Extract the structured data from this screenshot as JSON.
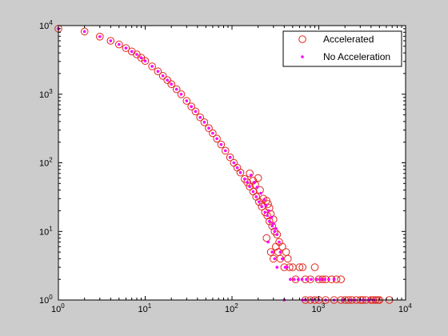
{
  "chart_data": {
    "type": "scatter",
    "x_scale": "log",
    "y_scale": "log",
    "xlim": [
      1,
      10000
    ],
    "ylim": [
      1,
      10000
    ],
    "grid": false,
    "legend_position": "top-right",
    "x_ticks": [
      {
        "base": "10",
        "exp": "0"
      },
      {
        "base": "10",
        "exp": "1"
      },
      {
        "base": "10",
        "exp": "2"
      },
      {
        "base": "10",
        "exp": "3"
      },
      {
        "base": "10",
        "exp": "4"
      }
    ],
    "y_ticks": [
      {
        "base": "10",
        "exp": "0"
      },
      {
        "base": "10",
        "exp": "1"
      },
      {
        "base": "10",
        "exp": "2"
      },
      {
        "base": "10",
        "exp": "3"
      },
      {
        "base": "10",
        "exp": "4"
      }
    ],
    "series": [
      {
        "name": "Accelerated",
        "marker": "circle-open",
        "color": "#e0281e",
        "points": [
          [
            1,
            9000
          ],
          [
            2,
            8200
          ],
          [
            3,
            6900
          ],
          [
            4,
            6000
          ],
          [
            5,
            5300
          ],
          [
            6,
            4700
          ],
          [
            7,
            4200
          ],
          [
            8,
            3800
          ],
          [
            9,
            3400
          ],
          [
            10,
            3050
          ],
          [
            12,
            2550
          ],
          [
            14,
            2150
          ],
          [
            16,
            1850
          ],
          [
            18,
            1600
          ],
          [
            20,
            1400
          ],
          [
            23,
            1180
          ],
          [
            26,
            1000
          ],
          [
            30,
            800
          ],
          [
            34,
            660
          ],
          [
            38,
            560
          ],
          [
            43,
            460
          ],
          [
            48,
            390
          ],
          [
            54,
            320
          ],
          [
            60,
            270
          ],
          [
            67,
            225
          ],
          [
            75,
            185
          ],
          [
            84,
            150
          ],
          [
            95,
            120
          ],
          [
            105,
            100
          ],
          [
            115,
            85
          ],
          [
            125,
            72
          ],
          [
            140,
            58
          ],
          [
            150,
            52
          ],
          [
            160,
            45
          ],
          [
            175,
            38
          ],
          [
            190,
            32
          ],
          [
            205,
            27
          ],
          [
            220,
            23
          ],
          [
            240,
            19
          ],
          [
            255,
            17
          ],
          [
            270,
            14
          ],
          [
            290,
            12
          ],
          [
            310,
            10
          ],
          [
            330,
            9
          ],
          [
            350,
            7
          ],
          [
            160,
            70
          ],
          [
            175,
            55
          ],
          [
            185,
            48
          ],
          [
            200,
            60
          ],
          [
            210,
            40
          ],
          [
            230,
            30
          ],
          [
            250,
            28
          ],
          [
            260,
            25
          ],
          [
            270,
            22
          ],
          [
            280,
            18
          ],
          [
            300,
            15
          ],
          [
            250,
            8
          ],
          [
            280,
            5
          ],
          [
            300,
            4
          ],
          [
            320,
            6
          ],
          [
            340,
            5
          ],
          [
            360,
            4
          ],
          [
            380,
            6
          ],
          [
            400,
            3
          ],
          [
            420,
            5
          ],
          [
            440,
            4
          ],
          [
            460,
            3
          ],
          [
            500,
            3
          ],
          [
            540,
            2
          ],
          [
            600,
            3
          ],
          [
            650,
            3
          ],
          [
            700,
            2
          ],
          [
            800,
            2
          ],
          [
            900,
            3
          ],
          [
            1000,
            2
          ],
          [
            1100,
            2
          ],
          [
            1200,
            2
          ],
          [
            1400,
            2
          ],
          [
            1600,
            2
          ],
          [
            1800,
            2
          ],
          [
            2000,
            1
          ],
          [
            2200,
            1
          ],
          [
            2400,
            1
          ],
          [
            2700,
            1
          ],
          [
            3000,
            1
          ],
          [
            3500,
            1
          ],
          [
            4000,
            1
          ],
          [
            4500,
            1
          ],
          [
            5000,
            1
          ],
          [
            6500,
            1
          ],
          [
            700,
            1
          ],
          [
            800,
            1
          ],
          [
            900,
            1
          ],
          [
            1000,
            1
          ],
          [
            1200,
            1
          ],
          [
            1500,
            1
          ],
          [
            1800,
            1
          ],
          [
            3200,
            1
          ],
          [
            4200,
            1
          ],
          [
            4800,
            1
          ]
        ]
      },
      {
        "name": "No Acceleration",
        "marker": "dot",
        "color": "#ff00ff",
        "points": [
          [
            1,
            9000
          ],
          [
            2,
            8200
          ],
          [
            3,
            6900
          ],
          [
            4,
            6000
          ],
          [
            5,
            5300
          ],
          [
            6,
            4700
          ],
          [
            7,
            4200
          ],
          [
            8,
            3800
          ],
          [
            9,
            3400
          ],
          [
            10,
            3050
          ],
          [
            12,
            2550
          ],
          [
            14,
            2150
          ],
          [
            16,
            1850
          ],
          [
            18,
            1600
          ],
          [
            20,
            1400
          ],
          [
            23,
            1180
          ],
          [
            26,
            1000
          ],
          [
            30,
            800
          ],
          [
            34,
            660
          ],
          [
            38,
            560
          ],
          [
            43,
            460
          ],
          [
            48,
            390
          ],
          [
            54,
            320
          ],
          [
            60,
            270
          ],
          [
            67,
            225
          ],
          [
            75,
            185
          ],
          [
            84,
            150
          ],
          [
            95,
            120
          ],
          [
            105,
            100
          ],
          [
            115,
            85
          ],
          [
            125,
            72
          ],
          [
            140,
            58
          ],
          [
            150,
            52
          ],
          [
            160,
            45
          ],
          [
            175,
            38
          ],
          [
            190,
            32
          ],
          [
            205,
            27
          ],
          [
            220,
            23
          ],
          [
            240,
            19
          ],
          [
            255,
            17
          ],
          [
            270,
            14
          ],
          [
            290,
            12
          ],
          [
            310,
            10
          ],
          [
            330,
            9
          ],
          [
            350,
            7
          ],
          [
            165,
            66
          ],
          [
            180,
            52
          ],
          [
            195,
            44
          ],
          [
            215,
            36
          ],
          [
            235,
            29
          ],
          [
            245,
            24
          ],
          [
            265,
            20
          ],
          [
            285,
            16
          ],
          [
            300,
            13
          ],
          [
            320,
            11
          ],
          [
            260,
            7
          ],
          [
            290,
            5
          ],
          [
            310,
            4
          ],
          [
            330,
            3
          ],
          [
            360,
            5
          ],
          [
            380,
            4
          ],
          [
            410,
            3
          ],
          [
            430,
            3
          ],
          [
            470,
            2
          ],
          [
            520,
            2
          ],
          [
            580,
            2
          ],
          [
            640,
            2
          ],
          [
            720,
            2
          ],
          [
            820,
            2
          ],
          [
            950,
            2
          ],
          [
            1050,
            2
          ],
          [
            1150,
            2
          ],
          [
            1300,
            2
          ],
          [
            1500,
            2
          ],
          [
            700,
            1
          ],
          [
            850,
            1
          ],
          [
            1000,
            1
          ],
          [
            1200,
            1
          ],
          [
            1500,
            1
          ],
          [
            1900,
            1
          ],
          [
            2300,
            1
          ],
          [
            2600,
            1
          ],
          [
            3000,
            1
          ],
          [
            3300,
            1
          ],
          [
            3800,
            1
          ],
          [
            4300,
            1
          ],
          [
            400,
            1
          ],
          [
            650,
            1
          ]
        ]
      }
    ]
  }
}
